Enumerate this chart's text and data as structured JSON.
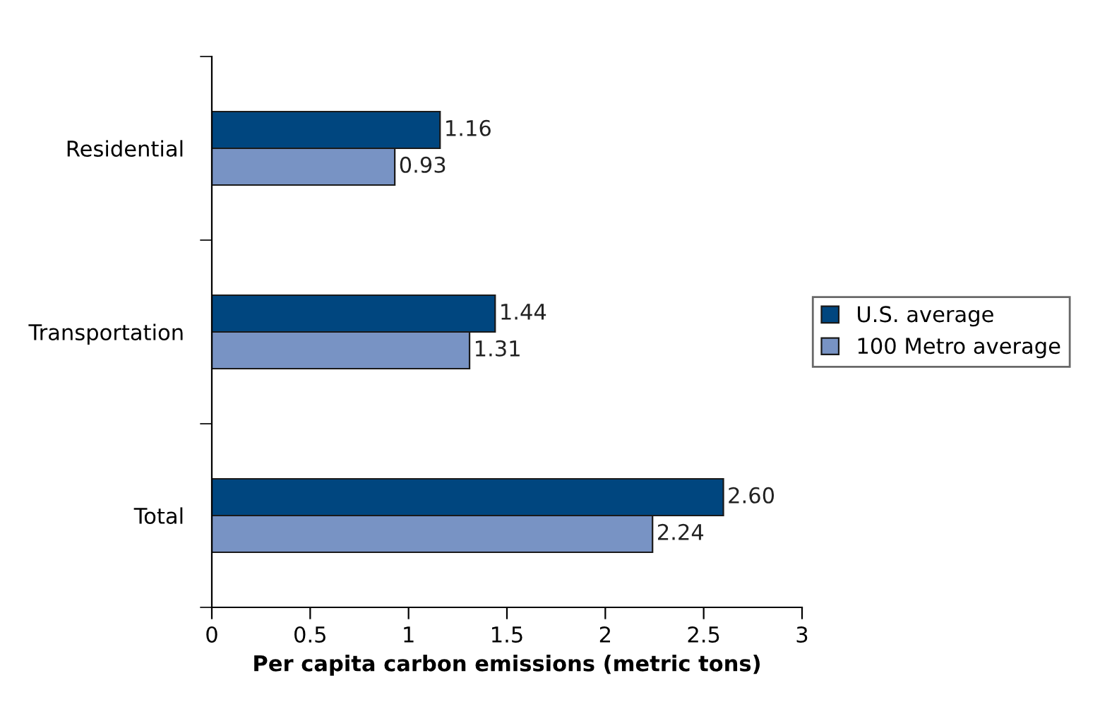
{
  "chart_data": {
    "type": "bar",
    "orientation": "horizontal",
    "xlabel": "Per capita carbon emissions (metric tons)",
    "categories": [
      "Residential",
      "Transportation",
      "Total"
    ],
    "series": [
      {
        "name": "U.S. average",
        "color": "#00467f",
        "values": [
          1.16,
          1.44,
          2.6
        ],
        "value_labels": [
          "1.16",
          "1.44",
          "2.60"
        ]
      },
      {
        "name": "100 Metro average",
        "color": "#7893c4",
        "values": [
          0.93,
          1.31,
          2.24
        ],
        "value_labels": [
          "0.93",
          "1.31",
          "2.24"
        ]
      }
    ],
    "xlim": [
      0,
      3
    ],
    "xticks": [
      0,
      0.5,
      1,
      1.5,
      2,
      2.5,
      3
    ],
    "grid": false,
    "legend": "right"
  }
}
